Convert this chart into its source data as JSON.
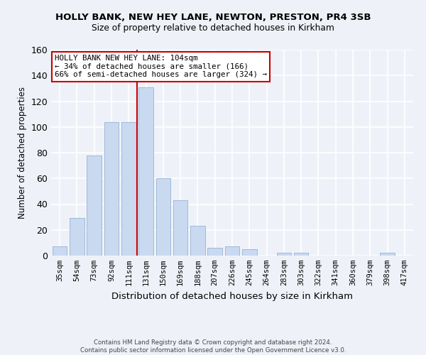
{
  "title1": "HOLLY BANK, NEW HEY LANE, NEWTON, PRESTON, PR4 3SB",
  "title2": "Size of property relative to detached houses in Kirkham",
  "xlabel": "Distribution of detached houses by size in Kirkham",
  "ylabel": "Number of detached properties",
  "bar_labels": [
    "35sqm",
    "54sqm",
    "73sqm",
    "92sqm",
    "111sqm",
    "131sqm",
    "150sqm",
    "169sqm",
    "188sqm",
    "207sqm",
    "226sqm",
    "245sqm",
    "264sqm",
    "283sqm",
    "303sqm",
    "322sqm",
    "341sqm",
    "360sqm",
    "379sqm",
    "398sqm",
    "417sqm"
  ],
  "bar_values": [
    7,
    29,
    78,
    104,
    104,
    131,
    60,
    43,
    23,
    6,
    7,
    5,
    0,
    2,
    2,
    0,
    0,
    0,
    0,
    2,
    0
  ],
  "bar_color": "#c9d9f0",
  "bar_edgecolor": "#a0b8d8",
  "vline_x": 4.5,
  "vline_color": "#cc0000",
  "annotation_text": "HOLLY BANK NEW HEY LANE: 104sqm\n← 34% of detached houses are smaller (166)\n66% of semi-detached houses are larger (324) →",
  "annotation_box_color": "white",
  "annotation_box_edgecolor": "#cc0000",
  "ylim": [
    0,
    160
  ],
  "yticks": [
    0,
    20,
    40,
    60,
    80,
    100,
    120,
    140,
    160
  ],
  "footnote": "Contains HM Land Registry data © Crown copyright and database right 2024.\nContains public sector information licensed under the Open Government Licence v3.0.",
  "bg_color": "#eef2f8",
  "grid_color": "white"
}
